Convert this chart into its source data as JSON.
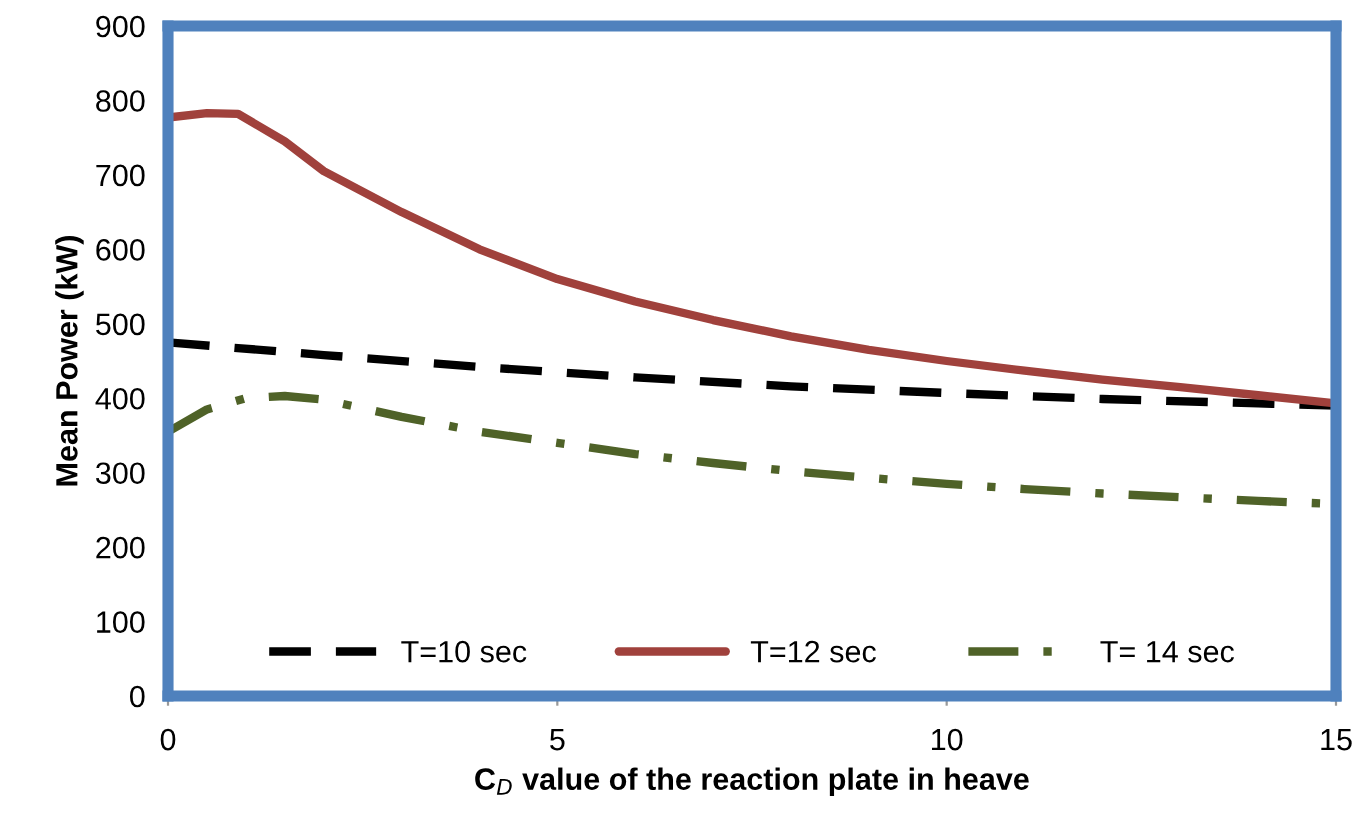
{
  "chart_data": {
    "type": "line",
    "xlabel": "C$_{D}$ value of the reaction plate in heave",
    "ylabel": "Mean Power (kW)",
    "xlim": [
      0,
      15
    ],
    "xticks": [
      0,
      5,
      10,
      15
    ],
    "ylim": [
      0,
      900
    ],
    "yticks": [
      0,
      100,
      200,
      300,
      400,
      500,
      600,
      700,
      800,
      900
    ],
    "grid": false,
    "legend": "bottom",
    "marker": "none",
    "series": [
      {
        "name": "T=10 sec",
        "color": "#000000",
        "line_style": "dashed",
        "x": [
          0,
          2,
          4,
          5,
          6,
          8,
          10,
          12,
          14,
          15
        ],
        "values": [
          475,
          458,
          442,
          435,
          428,
          416,
          407,
          399,
          393,
          390
        ]
      },
      {
        "name": "T=12 sec",
        "color": "#a0413c",
        "line_style": "solid",
        "x": [
          0,
          0.5,
          0.9,
          1.5,
          2,
          3,
          4,
          5,
          6,
          7,
          8,
          9,
          10,
          11,
          12,
          13,
          14,
          15
        ],
        "values": [
          777,
          783,
          782,
          745,
          705,
          650,
          600,
          560,
          530,
          505,
          483,
          465,
          450,
          437,
          425,
          415,
          404,
          393
        ]
      },
      {
        "name": "T= 14 sec",
        "color": "#4f6228",
        "line_style": "dashdot",
        "x": [
          0,
          0.5,
          1,
          1.5,
          2,
          3,
          4,
          5,
          6,
          7,
          8,
          9,
          10,
          11,
          12,
          13,
          14,
          15
        ],
        "values": [
          355,
          385,
          400,
          403,
          398,
          375,
          355,
          340,
          325,
          313,
          302,
          293,
          285,
          278,
          272,
          267,
          262,
          258
        ]
      }
    ]
  }
}
